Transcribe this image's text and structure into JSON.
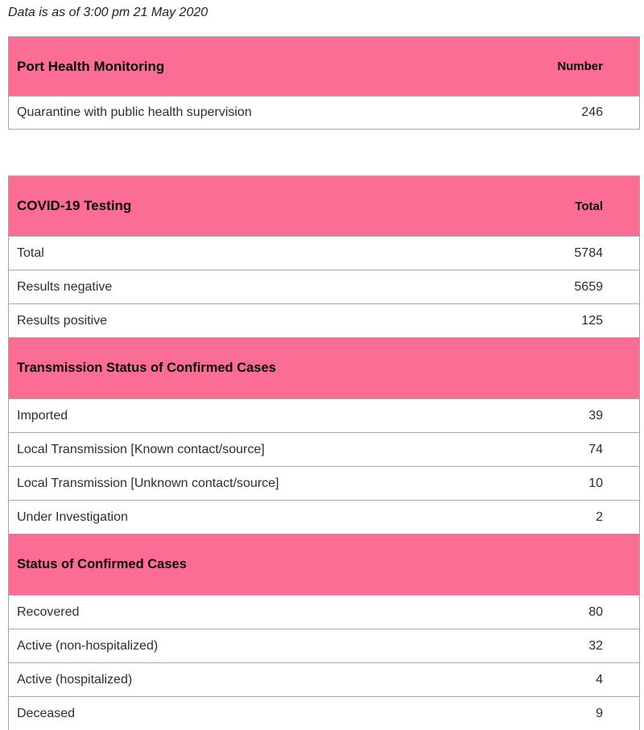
{
  "note": "Data is as of 3:00 pm 21 May 2020",
  "colors": {
    "header_pink": "#fb6d92",
    "row_separator": "#c9c9c9",
    "table_border": "#a0a0a0"
  },
  "port_table": {
    "title": "Port Health Monitoring",
    "col_header": "Number",
    "rows": [
      {
        "label": "Quarantine with public health supervision",
        "value": "246"
      }
    ]
  },
  "testing_table": {
    "title": "COVID-19 Testing",
    "col_header": "Total",
    "rows": [
      {
        "label": "Total",
        "value": "5784"
      },
      {
        "label": "Results negative",
        "value": "5659"
      },
      {
        "label": "Results positive",
        "value": "125"
      }
    ],
    "transmission_section": {
      "title": "Transmission Status of Confirmed Cases",
      "rows": [
        {
          "label": "Imported",
          "value": "39"
        },
        {
          "label": "Local Transmission [Known contact/source]",
          "value": "74"
        },
        {
          "label": "Local Transmission [Unknown contact/source]",
          "value": "10"
        },
        {
          "label": "Under Investigation",
          "value": "2"
        }
      ]
    },
    "status_section": {
      "title": "Status of Confirmed Cases",
      "rows": [
        {
          "label": "Recovered",
          "value": "80"
        },
        {
          "label": "Active (non-hospitalized)",
          "value": "32"
        },
        {
          "label": "Active (hospitalized)",
          "value": "4"
        },
        {
          "label": "Deceased",
          "value": "9"
        }
      ]
    }
  }
}
